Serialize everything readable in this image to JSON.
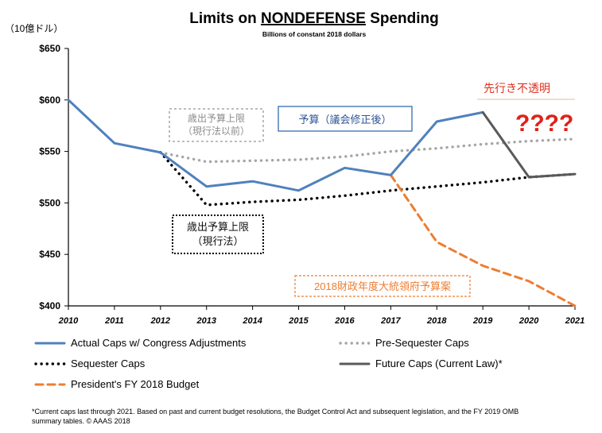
{
  "chart_data": {
    "type": "line",
    "title_prefix": "Limits on ",
    "title_emph": "NONDEFENSE",
    "title_suffix": " Spending",
    "subtitle": "Billions of constant 2018 dollars",
    "y_unit_label": "（10億ドル）",
    "ylim": [
      400,
      650
    ],
    "y_ticks": [
      "$650",
      "$600",
      "$550",
      "$500",
      "$450",
      "$400"
    ],
    "y_tick_values": [
      650,
      600,
      550,
      500,
      450,
      400
    ],
    "x_ticks": [
      "2010",
      "2011",
      "2012",
      "2013",
      "2014",
      "2015",
      "2016",
      "2017",
      "2018",
      "2019",
      "2020",
      "2021"
    ],
    "x_tick_values": [
      2010,
      2011,
      2012,
      2013,
      2014,
      2015,
      2016,
      2017,
      2018,
      2019,
      2020,
      2021
    ],
    "xlim": [
      2010,
      2021
    ],
    "grid": false,
    "legend_position": "bottom",
    "series": [
      {
        "name": "Actual Caps w/ Congress Adjustments",
        "color": "#4f81bd",
        "style": "solid",
        "width": 3,
        "x": [
          2010,
          2011,
          2012,
          2013,
          2014,
          2015,
          2016,
          2017,
          2018,
          2019
        ],
        "y": [
          600,
          558,
          549,
          516,
          521,
          512,
          534,
          527,
          579,
          588
        ]
      },
      {
        "name": "Pre-Sequester Caps",
        "color": "#a6a6a6",
        "style": "dot",
        "width": 3,
        "x": [
          2012,
          2013,
          2014,
          2015,
          2016,
          2017,
          2018,
          2019,
          2020,
          2021
        ],
        "y": [
          549,
          540,
          541,
          542,
          545,
          550,
          553,
          557,
          560,
          562
        ]
      },
      {
        "name": "Sequester Caps",
        "color": "#000000",
        "style": "dot",
        "width": 3,
        "x": [
          2012,
          2013,
          2014,
          2015,
          2016,
          2017,
          2018,
          2019,
          2020,
          2021
        ],
        "y": [
          549,
          498,
          501,
          503,
          507,
          512,
          516,
          520,
          525,
          528
        ]
      },
      {
        "name": "Future Caps (Current Law)*",
        "color": "#595959",
        "style": "solid",
        "width": 3,
        "x": [
          2019,
          2020,
          2021
        ],
        "y": [
          588,
          525,
          528
        ]
      },
      {
        "name": "President's FY 2018 Budget",
        "color": "#ed7d31",
        "style": "dash",
        "width": 3,
        "x": [
          2017,
          2018,
          2019,
          2020,
          2021
        ],
        "y": [
          527,
          462,
          439,
          424,
          400
        ]
      }
    ],
    "annotations": {
      "pre_sequester_jp_line1": "歳出予算上限",
      "pre_sequester_jp_line2": "（現行法以前）",
      "budget_amended_jp": "予算（議会修正後）",
      "outlook_jp": "先行き不透明",
      "question_marks": "????",
      "sequester_jp_line1": "歳出予算上限",
      "sequester_jp_line2": "（現行法）",
      "president_budget_jp": "2018財政年度大統領府予算案"
    },
    "footnote_line1": "*Current caps last through 2021. Based on past and current budget resolutions, the Budget Control Act and subsequent legislation, and the FY 2019 OMB",
    "footnote_line2": "summary tables. © AAAS 2018"
  }
}
